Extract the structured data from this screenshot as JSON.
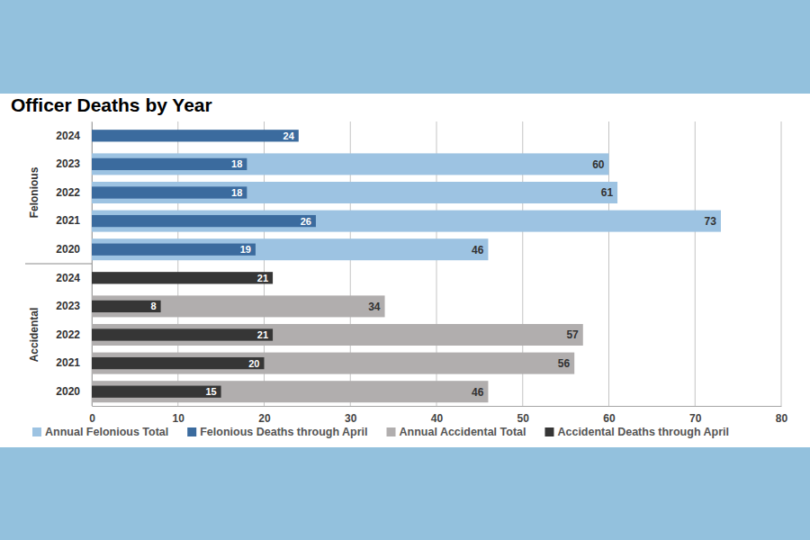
{
  "chart_data": {
    "type": "bar",
    "title": "Officer Deaths by Year",
    "orientation": "horizontal",
    "categories": [
      "2024",
      "2023",
      "2022",
      "2021",
      "2020",
      "2024",
      "2023",
      "2022",
      "2021",
      "2020"
    ],
    "groups": [
      "Felonious",
      "Felonious",
      "Felonious",
      "Felonious",
      "Felonious",
      "Accidental",
      "Accidental",
      "Accidental",
      "Accidental",
      "Accidental"
    ],
    "series": [
      {
        "name": "Annual Felonious Total",
        "color": "#9dc3e2",
        "values": [
          null,
          60,
          61,
          73,
          46,
          null,
          null,
          null,
          null,
          null
        ]
      },
      {
        "name": "Felonious Deaths through April",
        "color": "#3b6b9e",
        "values": [
          24,
          18,
          18,
          26,
          19,
          null,
          null,
          null,
          null,
          null
        ]
      },
      {
        "name": "Annual Accidental Total",
        "color": "#b1aeae",
        "values": [
          null,
          null,
          null,
          null,
          null,
          null,
          34,
          57,
          56,
          46
        ]
      },
      {
        "name": "Accidental Deaths through April",
        "color": "#363636",
        "values": [
          null,
          null,
          null,
          null,
          null,
          21,
          8,
          21,
          20,
          15
        ]
      }
    ],
    "xlim": [
      0,
      80
    ],
    "xticks": [
      0,
      10,
      20,
      30,
      40,
      50,
      60,
      70,
      80
    ],
    "grid": true,
    "data_labels": true,
    "legend": "bottom"
  }
}
